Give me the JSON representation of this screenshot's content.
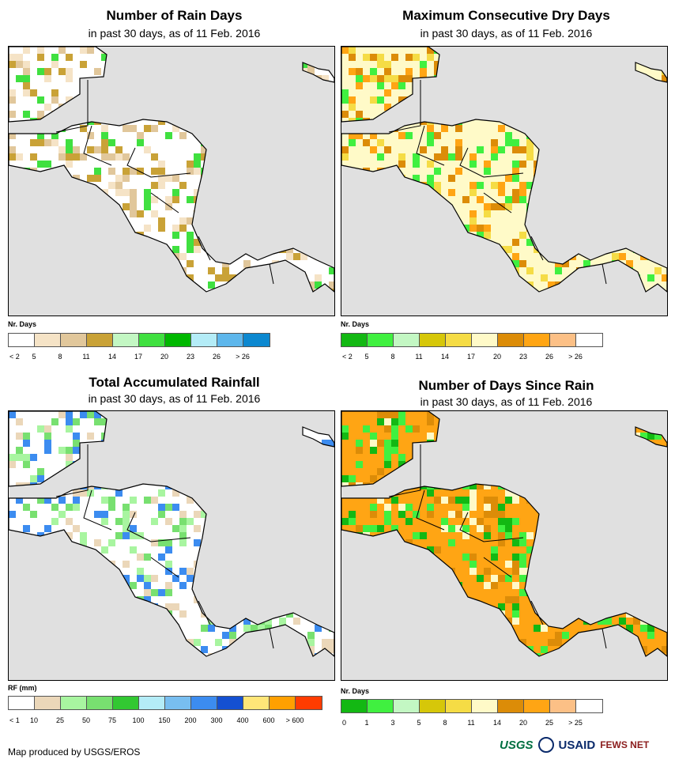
{
  "panels": [
    {
      "title": "Number of Rain Days",
      "subtitle": "in past 30 days, as of 11 Feb. 2016",
      "legend_title": "Nr. Days",
      "legend": [
        {
          "label": "< 2",
          "color": "#ffffff"
        },
        {
          "label": "5",
          "color": "#f5e3c6"
        },
        {
          "label": "8",
          "color": "#e1c79b"
        },
        {
          "label": "11",
          "color": "#c9a237"
        },
        {
          "label": "14",
          "color": "#c3f7c3"
        },
        {
          "label": "17",
          "color": "#40e040"
        },
        {
          "label": "20",
          "color": "#00b800"
        },
        {
          "label": "23",
          "color": "#b4ecf7"
        },
        {
          "label": "26",
          "color": "#5eb7ec"
        },
        {
          "label": "> 26",
          "color": "#0c88d0"
        }
      ]
    },
    {
      "title": "Maximum Consecutive Dry Days",
      "subtitle": "in past 30 days, as of 11 Feb. 2016",
      "legend_title": "Nr. Days",
      "legend": [
        {
          "label": "< 2",
          "color": "#13b813"
        },
        {
          "label": "5",
          "color": "#40f040"
        },
        {
          "label": "8",
          "color": "#c3f7c3"
        },
        {
          "label": "11",
          "color": "#d6c709"
        },
        {
          "label": "14",
          "color": "#f5dc45"
        },
        {
          "label": "17",
          "color": "#fffac8"
        },
        {
          "label": "20",
          "color": "#dc8c08"
        },
        {
          "label": "23",
          "color": "#ffa514"
        },
        {
          "label": "26",
          "color": "#fcc086"
        },
        {
          "label": "> 26",
          "color": "#ffffff"
        }
      ]
    },
    {
      "title": "Total Accumulated Rainfall",
      "subtitle": "in past 30 days, as of 11 Feb. 2016",
      "legend_title": "RF (mm)",
      "legend": [
        {
          "label": "< 1",
          "color": "#ffffff"
        },
        {
          "label": "10",
          "color": "#ebd7b9"
        },
        {
          "label": "25",
          "color": "#a8f5a0"
        },
        {
          "label": "50",
          "color": "#78e070"
        },
        {
          "label": "75",
          "color": "#32c832"
        },
        {
          "label": "100",
          "color": "#b4ecf7"
        },
        {
          "label": "150",
          "color": "#78bef0"
        },
        {
          "label": "200",
          "color": "#3c8cf0"
        },
        {
          "label": "300",
          "color": "#1450d2"
        },
        {
          "label": "400",
          "color": "#ffe678"
        },
        {
          "label": "600",
          "color": "#ffa000"
        },
        {
          "label": "> 600",
          "color": "#ff3c00"
        }
      ]
    },
    {
      "title": "Number of Days Since Rain",
      "subtitle": "in past 30 days, as of 11 Feb. 2016",
      "legend_title": "Nr. Days",
      "legend": [
        {
          "label": "0",
          "color": "#13b813"
        },
        {
          "label": "1",
          "color": "#40f040"
        },
        {
          "label": "3",
          "color": "#c3f7c3"
        },
        {
          "label": "5",
          "color": "#d6c709"
        },
        {
          "label": "8",
          "color": "#f5dc45"
        },
        {
          "label": "11",
          "color": "#fffac8"
        },
        {
          "label": "14",
          "color": "#dc8c08"
        },
        {
          "label": "20",
          "color": "#ffa514"
        },
        {
          "label": "25",
          "color": "#fcc086"
        },
        {
          "label": "> 25",
          "color": "#ffffff"
        }
      ]
    }
  ],
  "map_fill": {
    "p0": {
      "land": "#ffffff",
      "accents": [
        "#e1c79b",
        "#f5e3c6",
        "#40e040",
        "#c9a237"
      ]
    },
    "p1": {
      "land": "#fffac8",
      "accents": [
        "#dc8c08",
        "#ffa514",
        "#f5dc45",
        "#40f040"
      ]
    },
    "p2": {
      "land": "#ffffff",
      "accents": [
        "#78e070",
        "#a8f5a0",
        "#ebd7b9",
        "#3c8cf0"
      ]
    },
    "p3": {
      "land": "#ffa514",
      "accents": [
        "#13b813",
        "#dc8c08",
        "#fffac8",
        "#40f040"
      ]
    }
  },
  "footer": {
    "credit": "Map produced by USGS/EROS",
    "logos": [
      "USGS",
      "USAID",
      "FEWS NET"
    ]
  }
}
